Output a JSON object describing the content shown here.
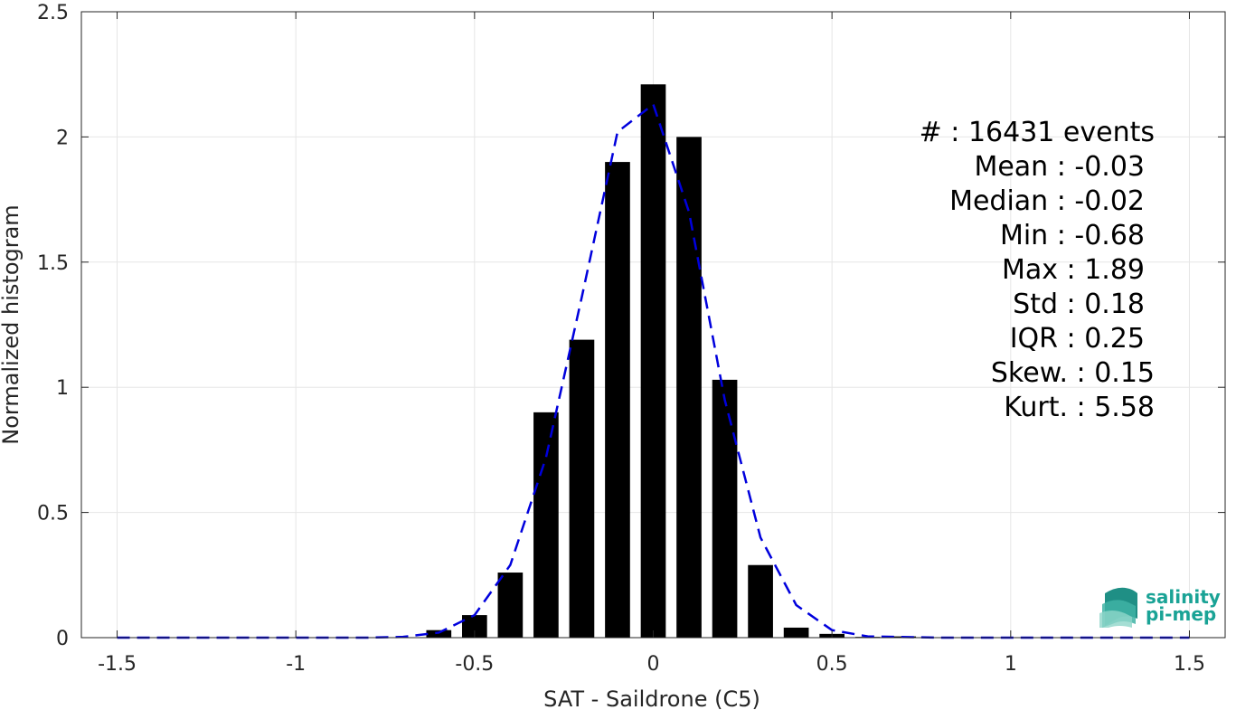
{
  "chart_data": {
    "type": "bar",
    "xlabel": "SAT - Saildrone (C5)",
    "ylabel": "Normalized histogram",
    "xlim": [
      -1.6,
      1.6
    ],
    "ylim": [
      0,
      2.5
    ],
    "grid": true,
    "x_ticks": [
      -1.5,
      -1,
      -0.5,
      0,
      0.5,
      1,
      1.5
    ],
    "x_tick_labels": [
      "-1.5",
      "-1",
      "-0.5",
      "0",
      "0.5",
      "1",
      "1.5"
    ],
    "y_ticks": [
      0,
      0.5,
      1,
      1.5,
      2,
      2.5
    ],
    "y_tick_labels": [
      "0",
      "0.5",
      "1",
      "1.5",
      "2",
      "2.5"
    ],
    "bar_width": 0.07,
    "bar_color": "#000000",
    "bars": {
      "x": [
        -0.6,
        -0.5,
        -0.4,
        -0.3,
        -0.2,
        -0.1,
        0.0,
        0.1,
        0.2,
        0.3,
        0.4,
        0.5,
        0.6,
        0.7
      ],
      "values": [
        0.03,
        0.09,
        0.26,
        0.9,
        1.19,
        1.9,
        2.21,
        2.0,
        1.03,
        0.29,
        0.04,
        0.015,
        0.003,
        0.005
      ]
    },
    "fit_curve": {
      "style": "dashed",
      "color": "#0000dd",
      "x": [
        -1.5,
        -1.2,
        -1.0,
        -0.8,
        -0.7,
        -0.6,
        -0.5,
        -0.4,
        -0.3,
        -0.2,
        -0.1,
        0.0,
        0.1,
        0.2,
        0.3,
        0.4,
        0.5,
        0.6,
        0.8,
        1.0,
        1.2,
        1.5
      ],
      "y": [
        0.0,
        0.0,
        0.0,
        0.0,
        0.003,
        0.02,
        0.09,
        0.29,
        0.72,
        1.36,
        2.02,
        2.13,
        1.7,
        0.95,
        0.4,
        0.13,
        0.03,
        0.005,
        0.0,
        0.0,
        0.0,
        0.0
      ]
    },
    "stats": [
      "#  : 16431 events",
      "Mean : -0.03",
      "Median : -0.02",
      "Min : -0.68",
      "Max : 1.89",
      "Std : 0.18",
      "IQR : 0.25",
      "Skew. : 0.15",
      "Kurt. : 5.58"
    ]
  },
  "logo": {
    "line1": "salinity",
    "line2": "pi-mep",
    "color": "#1aa396"
  }
}
